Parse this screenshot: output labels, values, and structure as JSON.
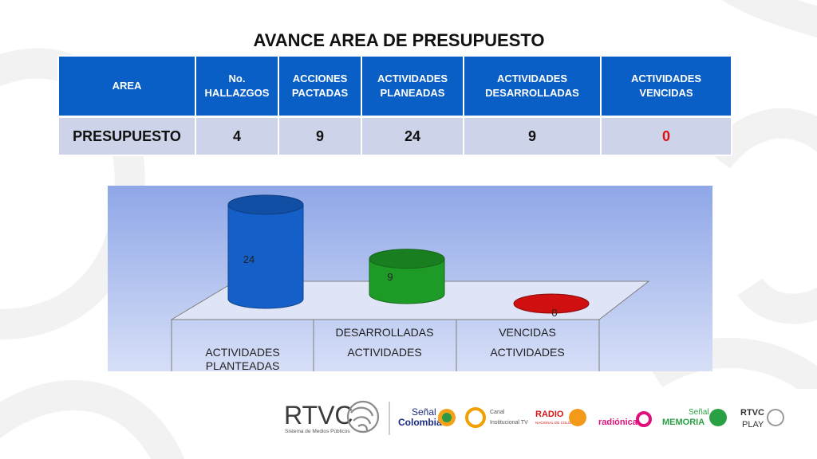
{
  "title": "AVANCE AREA DE PRESUPUESTO",
  "table": {
    "headers": [
      "AREA",
      "No. HALLAZGOS",
      "ACCIONES PACTADAS",
      "ACTIVIDADES PLANEADAS",
      "ACTIVIDADES DESARROLLADAS",
      "ACTIVIDADES VENCIDAS"
    ],
    "row": [
      "PRESUPUESTO",
      "4",
      "9",
      "24",
      "9",
      "0"
    ]
  },
  "chart_data": {
    "type": "bar",
    "categories": [
      "ACTIVIDADES PLANTEADAS",
      "ACTIVIDADES DESARROLLADAS",
      "ACTIVIDADES VENCIDAS"
    ],
    "category_lines": [
      [
        "ACTIVIDADES",
        "PLANTEADAS"
      ],
      [
        "DESARROLLADAS",
        "ACTIVIDADES"
      ],
      [
        "VENCIDAS",
        "ACTIVIDADES"
      ]
    ],
    "values": [
      24,
      9,
      0
    ],
    "data_labels": [
      "24",
      "9",
      "0"
    ],
    "colors": [
      "#1560c8",
      "#1e9a26",
      "#d01010"
    ],
    "ylim": [
      0,
      26
    ],
    "style": "3d-cylinder",
    "grid": false,
    "legend": "none"
  },
  "logos": {
    "main": "RTVC",
    "main_sub": "Sistema de Medios Públicos",
    "channels": [
      {
        "line1": "Señal",
        "line2": "Colombia",
        "color": "#1a2a80"
      },
      {
        "line1": "Canal",
        "line2": "Institucional TV",
        "color": "#555555"
      },
      {
        "line1": "RADIO",
        "line2": "NACIONAL DE COLOMBIA",
        "color": "#d01818"
      },
      {
        "line1": "radiónica",
        "line2": "",
        "color": "#e0107a"
      },
      {
        "line1": "Señal",
        "line2": "MEMORIA",
        "color": "#2aa044"
      },
      {
        "line1": "RTVC",
        "line2": "PLAY",
        "color": "#333333"
      }
    ]
  }
}
